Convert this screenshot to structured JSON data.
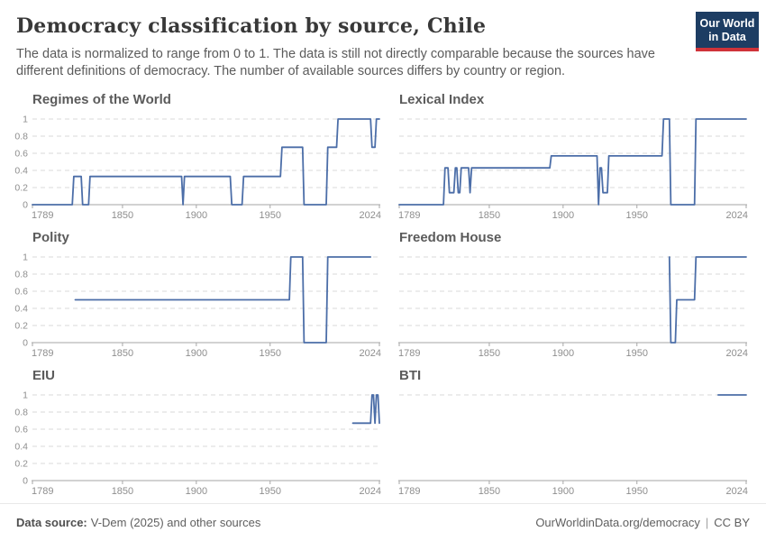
{
  "header": {
    "title": "Democracy classification by source, Chile",
    "subtitle": "The data is normalized to range from 0 to 1. The data is still not directly comparable because the sources have different definitions of democracy. The number of available sources differs by country or region.",
    "logo": {
      "line1": "Our World",
      "line2": "in Data"
    }
  },
  "colors": {
    "line": "#4c6ea8",
    "gridline": "#d8d8d8",
    "axis": "#a6a6a6",
    "tick_label": "#8e8e8e",
    "logo_bg": "#1d3d63",
    "logo_stripe": "#cf3339"
  },
  "axes": {
    "x_range": [
      1789,
      2024
    ],
    "y_range": [
      0,
      1
    ],
    "x_ticks": [
      [
        1789,
        "1789"
      ],
      [
        1850,
        "1850"
      ],
      [
        1900,
        "1900"
      ],
      [
        1950,
        "1950"
      ],
      [
        2024,
        "2024"
      ]
    ],
    "y_ticks": [
      [
        1,
        "1"
      ],
      [
        0.8,
        "0.8"
      ],
      [
        0.6,
        "0.6"
      ],
      [
        0.4,
        "0.4"
      ],
      [
        0.2,
        "0.2"
      ],
      [
        0,
        "0"
      ]
    ],
    "grid_style": "dashed"
  },
  "chart_data": [
    {
      "type": "line",
      "title": "Regimes of the World",
      "entity": "Chile",
      "show_y_labels": true,
      "gridlines": [
        0.2,
        0.4,
        0.6,
        0.8,
        1
      ],
      "points": [
        [
          1789,
          0
        ],
        [
          1816,
          0
        ],
        [
          1817,
          0.33
        ],
        [
          1822,
          0.33
        ],
        [
          1823,
          0
        ],
        [
          1827,
          0
        ],
        [
          1828,
          0.33
        ],
        [
          1890,
          0.33
        ],
        [
          1891,
          0
        ],
        [
          1892,
          0.33
        ],
        [
          1923,
          0.33
        ],
        [
          1924,
          0
        ],
        [
          1931,
          0
        ],
        [
          1932,
          0.33
        ],
        [
          1957,
          0.33
        ],
        [
          1958,
          0.67
        ],
        [
          1972,
          0.67
        ],
        [
          1973,
          0
        ],
        [
          1988,
          0
        ],
        [
          1989,
          0.67
        ],
        [
          1995,
          0.67
        ],
        [
          1996,
          1
        ],
        [
          2018,
          1
        ],
        [
          2019,
          0.67
        ],
        [
          2021,
          0.67
        ],
        [
          2022,
          1
        ],
        [
          2024,
          1
        ]
      ]
    },
    {
      "type": "line",
      "title": "Lexical Index",
      "entity": "Chile",
      "show_y_labels": false,
      "gridlines": [
        0.2,
        0.4,
        0.6,
        0.8,
        1
      ],
      "points": [
        [
          1789,
          0
        ],
        [
          1819,
          0
        ],
        [
          1820,
          0.43
        ],
        [
          1822,
          0.43
        ],
        [
          1823,
          0.14
        ],
        [
          1826,
          0.14
        ],
        [
          1827,
          0.43
        ],
        [
          1828,
          0.43
        ],
        [
          1829,
          0.14
        ],
        [
          1830,
          0.14
        ],
        [
          1831,
          0.43
        ],
        [
          1836,
          0.43
        ],
        [
          1837,
          0.14
        ],
        [
          1838,
          0.43
        ],
        [
          1891,
          0.43
        ],
        [
          1892,
          0.57
        ],
        [
          1923,
          0.57
        ],
        [
          1924,
          0
        ],
        [
          1925,
          0.43
        ],
        [
          1926,
          0.43
        ],
        [
          1927,
          0.14
        ],
        [
          1930,
          0.14
        ],
        [
          1931,
          0.57
        ],
        [
          1967,
          0.57
        ],
        [
          1968,
          1
        ],
        [
          1972,
          1
        ],
        [
          1973,
          0
        ],
        [
          1989,
          0
        ],
        [
          1990,
          1
        ],
        [
          2024,
          1
        ]
      ]
    },
    {
      "type": "line",
      "title": "Polity",
      "entity": "Chile",
      "show_y_labels": true,
      "gridlines": [
        0.2,
        0.4,
        0.6,
        0.8,
        1
      ],
      "points": [
        [
          1818,
          0.5
        ],
        [
          1963,
          0.5
        ],
        [
          1964,
          1
        ],
        [
          1972,
          1
        ],
        [
          1973,
          0
        ],
        [
          1988,
          0
        ],
        [
          1989,
          1
        ],
        [
          2018,
          1
        ]
      ]
    },
    {
      "type": "line",
      "title": "Freedom House",
      "entity": "Chile",
      "show_y_labels": false,
      "gridlines": [
        0.2,
        0.4,
        0.6,
        0.8,
        1
      ],
      "points": [
        [
          1972,
          1
        ],
        [
          1973,
          0
        ],
        [
          1976,
          0
        ],
        [
          1977,
          0.5
        ],
        [
          1989,
          0.5
        ],
        [
          1990,
          1
        ],
        [
          2024,
          1
        ]
      ]
    },
    {
      "type": "line",
      "title": "EIU",
      "entity": "Chile",
      "show_y_labels": true,
      "gridlines": [
        0.2,
        0.4,
        0.6,
        0.8,
        1
      ],
      "points": [
        [
          2006,
          0.67
        ],
        [
          2018,
          0.67
        ],
        [
          2019,
          1
        ],
        [
          2020,
          1
        ],
        [
          2021,
          0.67
        ],
        [
          2022,
          1
        ],
        [
          2023,
          1
        ],
        [
          2024,
          0.67
        ]
      ]
    },
    {
      "type": "line",
      "title": "BTI",
      "entity": "Chile",
      "show_y_labels": false,
      "gridlines": [
        1
      ],
      "points": [
        [
          2005,
          1
        ],
        [
          2024,
          1
        ]
      ]
    }
  ],
  "footer": {
    "source_label": "Data source:",
    "source": "V-Dem (2025) and other sources",
    "credit": "OurWorldinData.org/democracy",
    "separator": "|",
    "license": "CC BY"
  }
}
